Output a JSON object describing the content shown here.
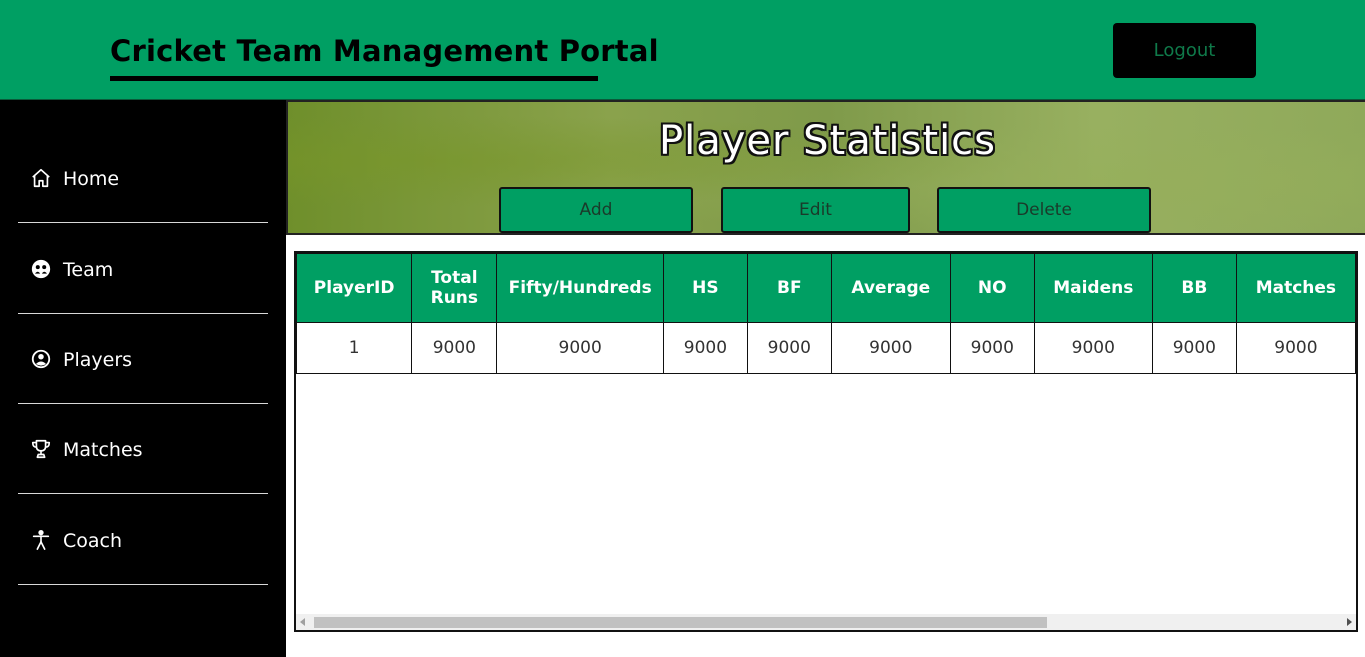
{
  "header": {
    "title": "Cricket Team Management Portal",
    "logout_label": "Logout"
  },
  "sidebar": {
    "items": [
      {
        "label": "Home",
        "icon": "home-icon"
      },
      {
        "label": "Team",
        "icon": "team-icon"
      },
      {
        "label": "Players",
        "icon": "user-circle-icon"
      },
      {
        "label": "Matches",
        "icon": "trophy-icon"
      },
      {
        "label": "Coach",
        "icon": "accessibility-icon"
      }
    ]
  },
  "banner": {
    "title": "Player Statistics",
    "add_label": "Add",
    "edit_label": "Edit",
    "delete_label": "Delete"
  },
  "table": {
    "columns": [
      "PlayerID",
      "Total Runs",
      "Fifty/Hundreds",
      "HS",
      "BF",
      "Average",
      "NO",
      "Maidens",
      "BB",
      "Matches"
    ],
    "rows": [
      [
        "1",
        "9000",
        "9000",
        "9000",
        "9000",
        "9000",
        "9000",
        "9000",
        "9000",
        "9000"
      ]
    ]
  },
  "colors": {
    "accent": "#009f63",
    "sidebar": "#000000",
    "header_text": "#000000"
  }
}
